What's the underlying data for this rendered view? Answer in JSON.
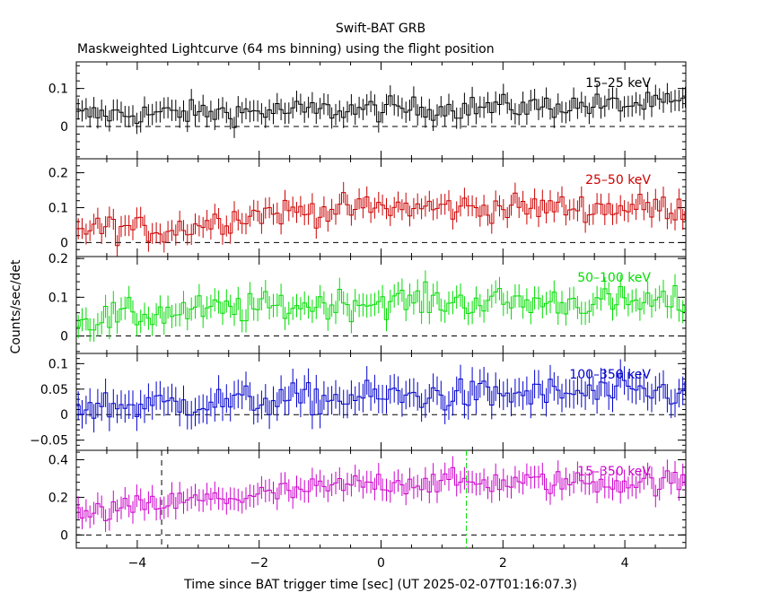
{
  "chart_data": {
    "type": "line",
    "title": "Swift-BAT GRB",
    "subtitle": "Maskweighted Lightcurve (64 ms binning) using the flight position",
    "xlabel": "Time since BAT trigger time [sec] (UT 2025-02-07T01:16:07.3)",
    "ylabel": "Counts/sec/det",
    "xlim": [
      -5,
      5
    ],
    "x_ticks": [
      -4,
      -2,
      0,
      2,
      4
    ],
    "x_tick_labels": [
      "−4",
      "−2",
      "0",
      "2",
      "4"
    ],
    "bin_width_s": 0.064,
    "markers": [
      {
        "x": -3.6,
        "color": "#000000",
        "style": "dashed",
        "panel": "15-350 keV"
      },
      {
        "x": 1.4,
        "color": "#00dd00",
        "style": "dash-dot",
        "panel": "15-350 keV"
      }
    ],
    "panels": [
      {
        "name": "15-25 keV",
        "label": "15–25 keV",
        "color": "#000000",
        "ylim": [
          -0.085,
          0.17
        ],
        "ticks": [
          0,
          0.1
        ],
        "tick_labels": [
          "0",
          "0.1"
        ],
        "level": [
          [
            -5,
            0.03
          ],
          [
            5,
            0.06
          ]
        ],
        "noise": 0.022,
        "err": 0.028
      },
      {
        "name": "25-50 keV",
        "label": "25–50 keV",
        "color": "#cc0000",
        "ylim": [
          -0.04,
          0.24
        ],
        "ticks": [
          0,
          0.1,
          0.2
        ],
        "tick_labels": [
          "0",
          "0.1",
          "0.2"
        ],
        "level": [
          [
            -5,
            0.045
          ],
          [
            -3.5,
            0.035
          ],
          [
            -2,
            0.085
          ],
          [
            0,
            0.1
          ],
          [
            5,
            0.1
          ]
        ],
        "noise": 0.028,
        "err": 0.03
      },
      {
        "name": "50-100 keV",
        "label": "50–100 keV",
        "color": "#00dd00",
        "ylim": [
          -0.045,
          0.205
        ],
        "ticks": [
          0,
          0.1,
          0.2
        ],
        "tick_labels": [
          "0",
          "0.1",
          "0.2"
        ],
        "level": [
          [
            -5,
            0.04
          ],
          [
            -3.5,
            0.06
          ],
          [
            0,
            0.09
          ],
          [
            5,
            0.085
          ]
        ],
        "noise": 0.028,
        "err": 0.03
      },
      {
        "name": "100-350 keV",
        "label": "100–350 keV",
        "color": "#0000cc",
        "ylim": [
          -0.07,
          0.12
        ],
        "ticks": [
          -0.05,
          0,
          0.05,
          0.1
        ],
        "tick_labels": [
          "−0.05",
          "0",
          "0.05",
          "0.1"
        ],
        "level": [
          [
            -5,
            0.015
          ],
          [
            0,
            0.035
          ],
          [
            5,
            0.045
          ]
        ],
        "noise": 0.022,
        "err": 0.028
      },
      {
        "name": "15-350 keV",
        "label": "15–350 keV",
        "color": "#cc00cc",
        "ylim": [
          -0.07,
          0.45
        ],
        "ticks": [
          0,
          0.2,
          0.4
        ],
        "tick_labels": [
          "0",
          "0.2",
          "0.4"
        ],
        "level": [
          [
            -5,
            0.1
          ],
          [
            -3.5,
            0.17
          ],
          [
            -2,
            0.21
          ],
          [
            0,
            0.28
          ],
          [
            5,
            0.28
          ]
        ],
        "noise": 0.045,
        "err": 0.06
      }
    ]
  }
}
